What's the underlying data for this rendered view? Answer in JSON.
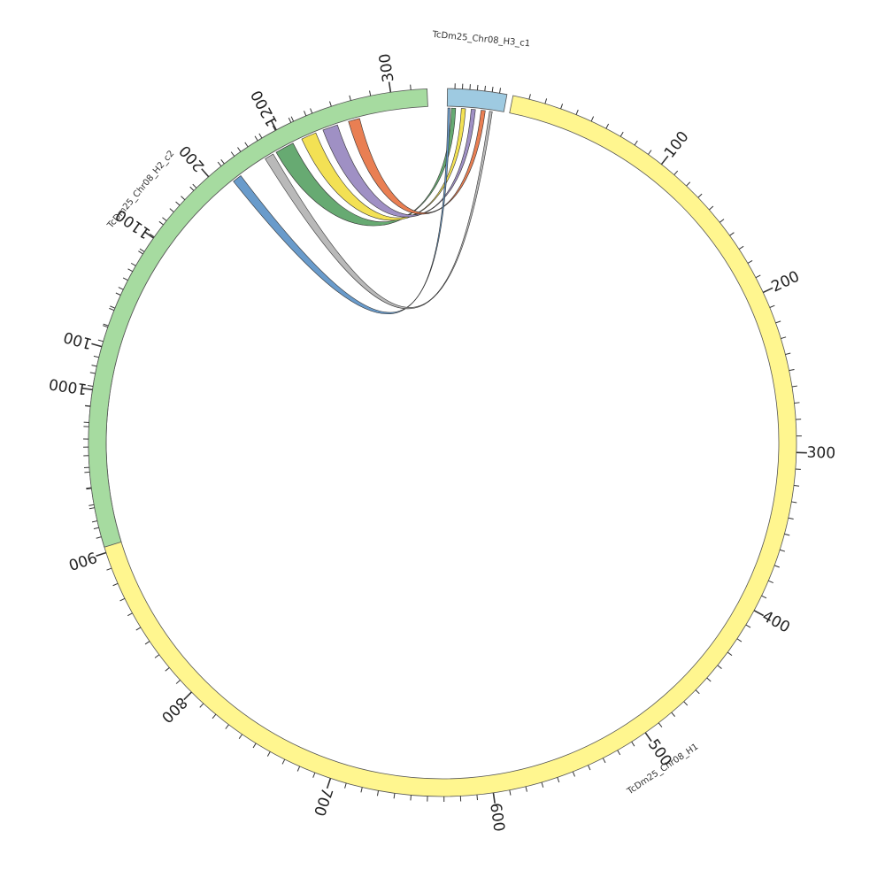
{
  "chart_data": {
    "type": "circos",
    "segments": [
      {
        "name": "TcDm25_Chr08_H1",
        "length": 1230,
        "color": "#fff68f",
        "ticks": {
          "major": 100,
          "minor": 10,
          "labels": [
            "100",
            "200",
            "300",
            "400",
            "500",
            "600",
            "700",
            "800",
            "900",
            "1000",
            "1100",
            "1200"
          ]
        }
      },
      {
        "name": "TcDm25_Chr08_H2_c2",
        "length": 318,
        "color": "#a6dba0",
        "ticks": {
          "major": 100,
          "minor": 10,
          "labels": [
            "100",
            "200",
            "300"
          ]
        }
      },
      {
        "name": "TcDm25_Chr08_H3_c1",
        "length": 80,
        "color": "#9ecae1",
        "ticks": {
          "major": 100,
          "minor": 10,
          "labels": []
        }
      }
    ],
    "links": [
      {
        "source": "TcDm25_Chr08_H3_c1",
        "source_range": [
          6,
          12
        ],
        "target": "TcDm25_Chr08_H2_c2",
        "target_range": [
          235,
          245
        ],
        "color": "#5fa56a"
      },
      {
        "source": "TcDm25_Chr08_H3_c1",
        "source_range": [
          20,
          26
        ],
        "target": "TcDm25_Chr08_H2_c2",
        "target_range": [
          250,
          258
        ],
        "color": "#f2df4b"
      },
      {
        "source": "TcDm25_Chr08_H3_c1",
        "source_range": [
          34,
          40
        ],
        "target": "TcDm25_Chr08_H2_c2",
        "target_range": [
          262,
          270
        ],
        "color": "#9a8ac1"
      },
      {
        "source": "TcDm25_Chr08_H3_c1",
        "source_range": [
          48,
          54
        ],
        "target": "TcDm25_Chr08_H2_c2",
        "target_range": [
          276,
          282
        ],
        "color": "#e8784a"
      },
      {
        "source": "TcDm25_Chr08_H3_c1",
        "source_range": [
          1,
          4
        ],
        "target": "TcDm25_Chr08_H1",
        "target_range": [
          1160,
          1166
        ],
        "color": "#6196c8"
      },
      {
        "source": "TcDm25_Chr08_H3_c1",
        "source_range": [
          60,
          64
        ],
        "target": "TcDm25_Chr08_H1",
        "target_range": [
          1185,
          1191
        ],
        "color": "#b5b5b5"
      }
    ]
  }
}
